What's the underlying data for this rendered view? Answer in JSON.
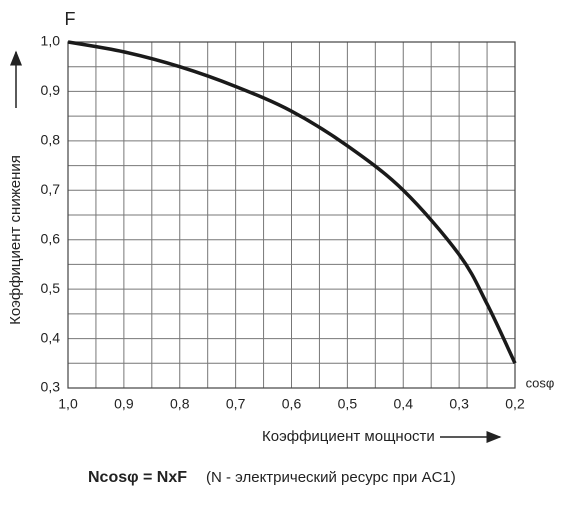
{
  "chart_data": {
    "type": "line",
    "y_axis_symbol": "F",
    "x_axis_symbol": "cosφ",
    "y_axis_label": "Коэффициент снижения",
    "x_axis_label": "Коэффициент мощности",
    "formula": "Ncosφ = NxF",
    "formula_note": "(N - электрический ресурс при AC1)",
    "x": [
      1.0,
      0.9,
      0.8,
      0.7,
      0.6,
      0.5,
      0.4,
      0.3,
      0.25,
      0.2
    ],
    "series": [
      {
        "color": "#1a1a1a",
        "values": [
          1.0,
          0.98,
          0.95,
          0.91,
          0.86,
          0.79,
          0.7,
          0.57,
          0.47,
          0.35
        ]
      }
    ],
    "xlim": [
      1.0,
      0.2
    ],
    "ylim": [
      0.3,
      1.0
    ],
    "xticks": [
      {
        "value": 1.0,
        "label": "1,0"
      },
      {
        "value": 0.9,
        "label": "0,9"
      },
      {
        "value": 0.8,
        "label": "0,8"
      },
      {
        "value": 0.7,
        "label": "0,7"
      },
      {
        "value": 0.6,
        "label": "0,6"
      },
      {
        "value": 0.5,
        "label": "0,5"
      },
      {
        "value": 0.4,
        "label": "0,4"
      },
      {
        "value": 0.3,
        "label": "0,3"
      },
      {
        "value": 0.2,
        "label": "0,2"
      }
    ],
    "yticks": [
      {
        "value": 0.3,
        "label": "0,3"
      },
      {
        "value": 0.4,
        "label": "0,4"
      },
      {
        "value": 0.5,
        "label": "0,5"
      },
      {
        "value": 0.6,
        "label": "0,6"
      },
      {
        "value": 0.7,
        "label": "0,7"
      },
      {
        "value": 0.8,
        "label": "0,8"
      },
      {
        "value": 0.9,
        "label": "0,9"
      },
      {
        "value": 1.0,
        "label": "1,0"
      }
    ],
    "grid": true
  }
}
